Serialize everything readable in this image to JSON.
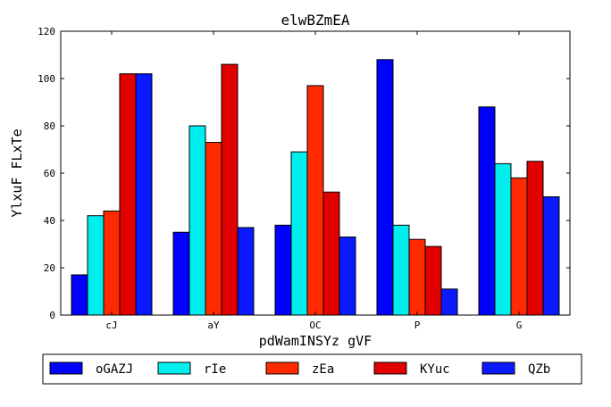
{
  "chart_data": {
    "type": "bar",
    "title": "elwBZmEA",
    "xlabel": "pdWamINSYz gVF",
    "ylabel": "YlxuF FLxTe",
    "ylim": [
      0,
      120
    ],
    "yticks": [
      0,
      20,
      40,
      60,
      80,
      100,
      120
    ],
    "categories": [
      "cJ",
      "aY",
      "OC",
      "P",
      "G"
    ],
    "grid": false,
    "legend_position": "bottom",
    "series": [
      {
        "name": "oGAZJ",
        "color": "#0000ff",
        "values": [
          17,
          35,
          38,
          108,
          88
        ]
      },
      {
        "name": "rIe",
        "color": "#00eeee",
        "values": [
          42,
          80,
          69,
          38,
          64
        ]
      },
      {
        "name": "zEa",
        "color": "#ff2a00",
        "values": [
          44,
          73,
          97,
          32,
          58
        ]
      },
      {
        "name": "KYuc",
        "color": "#e00000",
        "values": [
          102,
          106,
          52,
          29,
          65
        ]
      },
      {
        "name": "QZb",
        "color": "#0a1aff",
        "values": [
          102,
          37,
          33,
          11,
          50
        ]
      }
    ]
  }
}
